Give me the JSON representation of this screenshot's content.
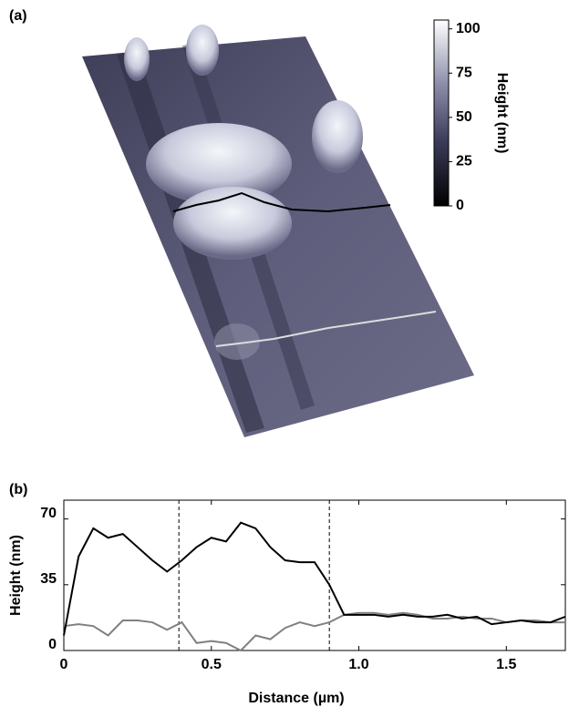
{
  "panel_a": {
    "label": "(a)",
    "colorbar": {
      "title": "Height (nm)",
      "lim": [
        0,
        105
      ],
      "ticks": [
        0,
        25,
        50,
        75,
        100
      ]
    }
  },
  "chart_data": {
    "type": "line",
    "label": "(b)",
    "xlabel": "Distance (µm)",
    "ylabel": "Height (nm)",
    "x": [
      0,
      0.05,
      0.1,
      0.15,
      0.2,
      0.25,
      0.3,
      0.35,
      0.4,
      0.45,
      0.5,
      0.55,
      0.6,
      0.65,
      0.7,
      0.75,
      0.8,
      0.85,
      0.9,
      0.95,
      1.0,
      1.05,
      1.1,
      1.15,
      1.2,
      1.25,
      1.3,
      1.35,
      1.4,
      1.45,
      1.5,
      1.55,
      1.6,
      1.65,
      1.7
    ],
    "series": [
      {
        "color": "#000000",
        "values": [
          8,
          50,
          65,
          60,
          62,
          55,
          48,
          42,
          48,
          55,
          60,
          58,
          68,
          65,
          55,
          48,
          47,
          47,
          35,
          19,
          19,
          19,
          18,
          19,
          18,
          18,
          19,
          17,
          18,
          14,
          15,
          16,
          15,
          15,
          18
        ]
      },
      {
        "color": "#808080",
        "values": [
          13,
          14,
          13,
          8,
          16,
          16,
          15,
          11,
          15,
          4,
          5,
          4,
          0,
          8,
          6,
          12,
          15,
          13,
          15,
          19,
          20,
          20,
          19,
          20,
          19,
          17,
          17,
          18,
          17,
          17,
          15,
          16,
          16,
          15,
          15
        ]
      }
    ],
    "xlim": [
      0,
      1.7
    ],
    "ylim": [
      0,
      80
    ],
    "xticks": [
      0,
      0.5,
      {
        "value": 1,
        "label": "1.0"
      },
      1.5
    ],
    "yticks": [
      0,
      35,
      70
    ],
    "vlines": [
      0.39,
      0.9
    ]
  }
}
